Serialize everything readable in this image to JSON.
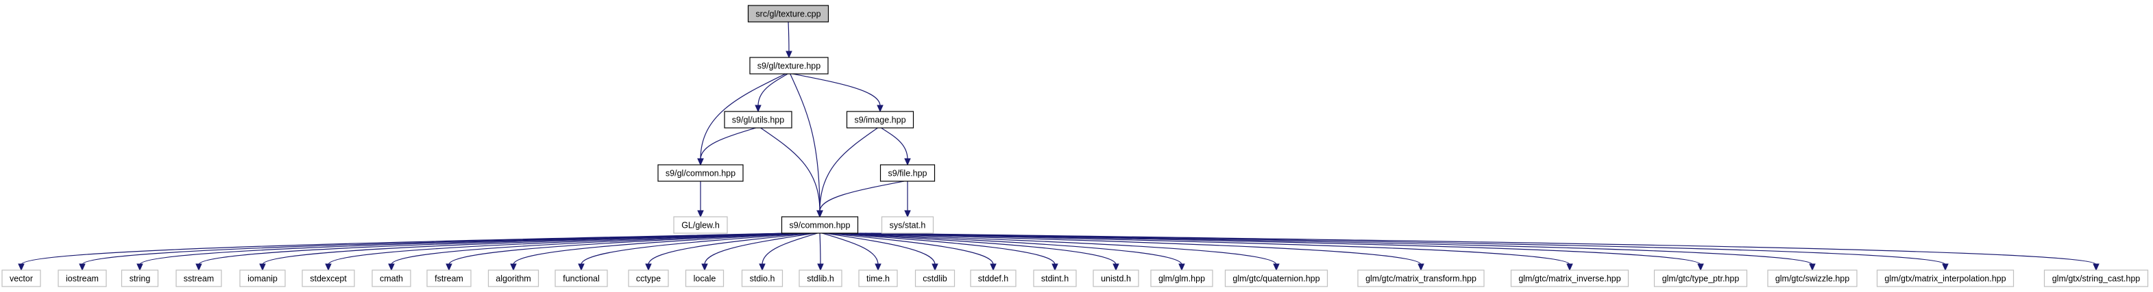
{
  "colors": {
    "edge": "#191970",
    "root_fill": "#bfbfbf",
    "root_border": "#000000",
    "node_border": "#000000",
    "external_border": "#bfbfbf",
    "node_fill": "#ffffff"
  },
  "nodes": [
    {
      "id": "texture_cpp",
      "label": "src/gl/texture.cpp",
      "kind": "root"
    },
    {
      "id": "texture_hpp",
      "label": "s9/gl/texture.hpp",
      "kind": "internal"
    },
    {
      "id": "utils_hpp",
      "label": "s9/gl/utils.hpp",
      "kind": "internal"
    },
    {
      "id": "image_hpp",
      "label": "s9/image.hpp",
      "kind": "internal"
    },
    {
      "id": "gl_common_hpp",
      "label": "s9/gl/common.hpp",
      "kind": "internal"
    },
    {
      "id": "file_hpp",
      "label": "s9/file.hpp",
      "kind": "internal"
    },
    {
      "id": "glew_h",
      "label": "GL/glew.h",
      "kind": "external"
    },
    {
      "id": "common_hpp",
      "label": "s9/common.hpp",
      "kind": "internal"
    },
    {
      "id": "sys_stat_h",
      "label": "sys/stat.h",
      "kind": "external"
    },
    {
      "id": "vector",
      "label": "vector",
      "kind": "external"
    },
    {
      "id": "iostream",
      "label": "iostream",
      "kind": "external"
    },
    {
      "id": "string",
      "label": "string",
      "kind": "external"
    },
    {
      "id": "sstream",
      "label": "sstream",
      "kind": "external"
    },
    {
      "id": "iomanip",
      "label": "iomanip",
      "kind": "external"
    },
    {
      "id": "stdexcept",
      "label": "stdexcept",
      "kind": "external"
    },
    {
      "id": "cmath",
      "label": "cmath",
      "kind": "external"
    },
    {
      "id": "fstream",
      "label": "fstream",
      "kind": "external"
    },
    {
      "id": "algorithm",
      "label": "algorithm",
      "kind": "external"
    },
    {
      "id": "functional",
      "label": "functional",
      "kind": "external"
    },
    {
      "id": "cctype",
      "label": "cctype",
      "kind": "external"
    },
    {
      "id": "locale",
      "label": "locale",
      "kind": "external"
    },
    {
      "id": "stdio_h",
      "label": "stdio.h",
      "kind": "external"
    },
    {
      "id": "stdlib_h",
      "label": "stdlib.h",
      "kind": "external"
    },
    {
      "id": "time_h",
      "label": "time.h",
      "kind": "external"
    },
    {
      "id": "cstdlib",
      "label": "cstdlib",
      "kind": "external"
    },
    {
      "id": "stddef_h",
      "label": "stddef.h",
      "kind": "external"
    },
    {
      "id": "stdint_h",
      "label": "stdint.h",
      "kind": "external"
    },
    {
      "id": "unistd_h",
      "label": "unistd.h",
      "kind": "external"
    },
    {
      "id": "glm_hpp",
      "label": "glm/glm.hpp",
      "kind": "external"
    },
    {
      "id": "quaternion_hpp",
      "label": "glm/gtc/quaternion.hpp",
      "kind": "external"
    },
    {
      "id": "matrix_transform_hpp",
      "label": "glm/gtc/matrix_transform.hpp",
      "kind": "external"
    },
    {
      "id": "matrix_inverse_hpp",
      "label": "glm/gtc/matrix_inverse.hpp",
      "kind": "external"
    },
    {
      "id": "type_ptr_hpp",
      "label": "glm/gtc/type_ptr.hpp",
      "kind": "external"
    },
    {
      "id": "swizzle_hpp",
      "label": "glm/gtc/swizzle.hpp",
      "kind": "external"
    },
    {
      "id": "matrix_interpolation_hpp",
      "label": "glm/gtx/matrix_interpolation.hpp",
      "kind": "external"
    },
    {
      "id": "string_cast_hpp",
      "label": "glm/gtx/string_cast.hpp",
      "kind": "external"
    }
  ],
  "edges": [
    [
      "texture_cpp",
      "texture_hpp"
    ],
    [
      "texture_hpp",
      "utils_hpp"
    ],
    [
      "texture_hpp",
      "image_hpp"
    ],
    [
      "texture_hpp",
      "gl_common_hpp"
    ],
    [
      "texture_hpp",
      "common_hpp"
    ],
    [
      "utils_hpp",
      "gl_common_hpp"
    ],
    [
      "utils_hpp",
      "common_hpp"
    ],
    [
      "image_hpp",
      "common_hpp"
    ],
    [
      "image_hpp",
      "file_hpp"
    ],
    [
      "gl_common_hpp",
      "glew_h"
    ],
    [
      "file_hpp",
      "common_hpp"
    ],
    [
      "file_hpp",
      "sys_stat_h"
    ],
    [
      "common_hpp",
      "vector"
    ],
    [
      "common_hpp",
      "iostream"
    ],
    [
      "common_hpp",
      "string"
    ],
    [
      "common_hpp",
      "sstream"
    ],
    [
      "common_hpp",
      "iomanip"
    ],
    [
      "common_hpp",
      "stdexcept"
    ],
    [
      "common_hpp",
      "cmath"
    ],
    [
      "common_hpp",
      "fstream"
    ],
    [
      "common_hpp",
      "algorithm"
    ],
    [
      "common_hpp",
      "functional"
    ],
    [
      "common_hpp",
      "cctype"
    ],
    [
      "common_hpp",
      "locale"
    ],
    [
      "common_hpp",
      "stdio_h"
    ],
    [
      "common_hpp",
      "stdlib_h"
    ],
    [
      "common_hpp",
      "time_h"
    ],
    [
      "common_hpp",
      "cstdlib"
    ],
    [
      "common_hpp",
      "stddef_h"
    ],
    [
      "common_hpp",
      "stdint_h"
    ],
    [
      "common_hpp",
      "unistd_h"
    ],
    [
      "common_hpp",
      "glm_hpp"
    ],
    [
      "common_hpp",
      "quaternion_hpp"
    ],
    [
      "common_hpp",
      "matrix_transform_hpp"
    ],
    [
      "common_hpp",
      "matrix_inverse_hpp"
    ],
    [
      "common_hpp",
      "type_ptr_hpp"
    ],
    [
      "common_hpp",
      "swizzle_hpp"
    ],
    [
      "common_hpp",
      "matrix_interpolation_hpp"
    ],
    [
      "common_hpp",
      "string_cast_hpp"
    ]
  ]
}
